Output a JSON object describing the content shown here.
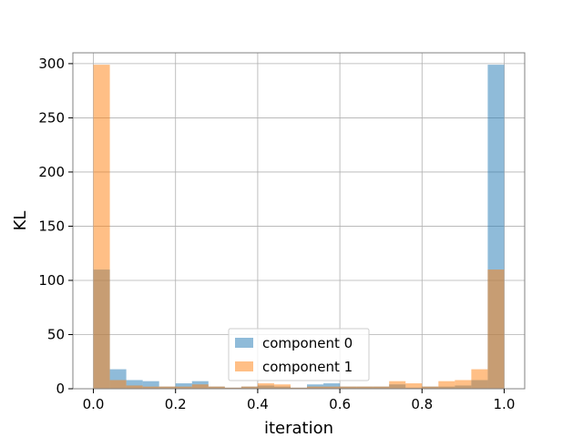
{
  "chart_data": {
    "type": "bar",
    "xlabel": "iteration",
    "ylabel": "KL",
    "xlim": [
      -0.05,
      1.05
    ],
    "ylim": [
      0,
      310
    ],
    "bin_width": 0.04,
    "bin_starts": [
      0.0,
      0.04,
      0.08,
      0.12,
      0.16,
      0.2,
      0.24,
      0.28,
      0.32,
      0.36,
      0.4,
      0.44,
      0.48,
      0.52,
      0.56,
      0.6,
      0.64,
      0.68,
      0.72,
      0.76,
      0.8,
      0.84,
      0.88,
      0.92,
      0.96
    ],
    "x_ticks": [
      0.0,
      0.2,
      0.4,
      0.6,
      0.8,
      1.0
    ],
    "x_tick_labels": [
      "0.0",
      "0.2",
      "0.4",
      "0.6",
      "0.8",
      "1.0"
    ],
    "y_ticks": [
      0,
      50,
      100,
      150,
      200,
      250,
      300
    ],
    "y_tick_labels": [
      "0",
      "50",
      "100",
      "150",
      "200",
      "250",
      "300"
    ],
    "grid": true,
    "legend_position": "bottom-center",
    "series": [
      {
        "name": "component 0",
        "color": "#1f77b4",
        "alpha": 0.5,
        "values": [
          110,
          18,
          8,
          7,
          2,
          5,
          7,
          2,
          1,
          2,
          3,
          2,
          1,
          4,
          5,
          2,
          2,
          2,
          4,
          1,
          2,
          2,
          3,
          8,
          299
        ]
      },
      {
        "name": "component 1",
        "color": "#ff7f0e",
        "alpha": 0.5,
        "values": [
          299,
          8,
          3,
          2,
          2,
          2,
          4,
          2,
          1,
          2,
          5,
          4,
          1,
          2,
          2,
          2,
          2,
          2,
          7,
          5,
          2,
          7,
          8,
          18,
          110
        ]
      }
    ]
  }
}
